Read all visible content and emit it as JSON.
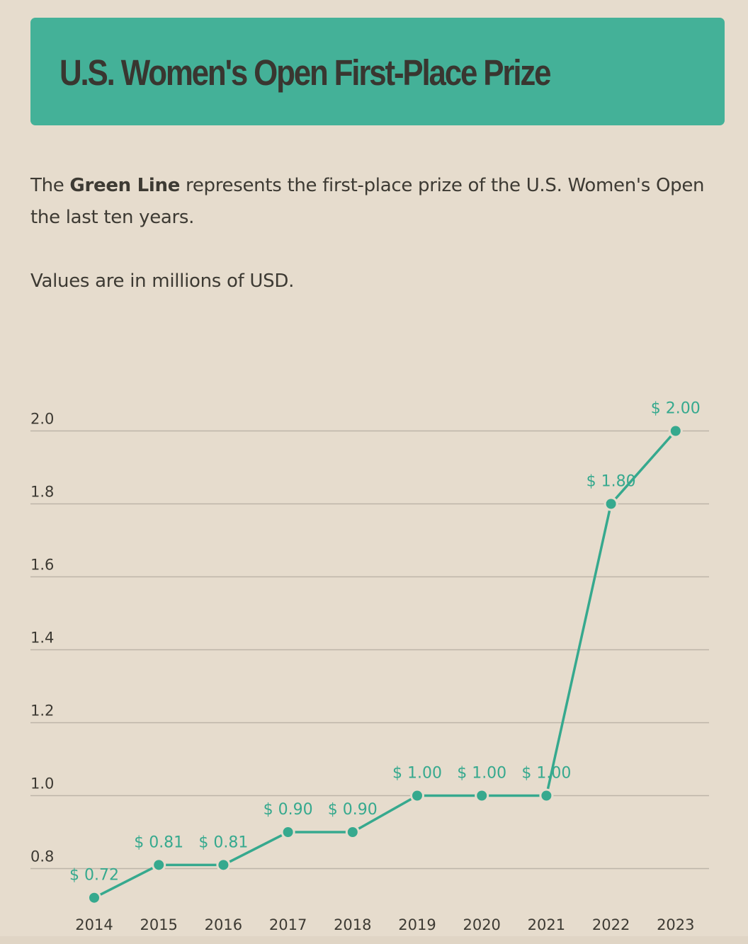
{
  "header": {
    "title": "U.S. Women's Open First-Place Prize"
  },
  "description": {
    "intro": "The ",
    "highlight": "Green Line",
    "rest": " represents the first-place prize of the U.S. Women's Open the last ten years.",
    "units": "Values are in millions of USD."
  },
  "colors": {
    "background": "#e6dccd",
    "accent": "#44b198",
    "line": "#36a98e",
    "grid": "#bdb5a8",
    "text": "#3d3a33"
  },
  "chart_data": {
    "type": "line",
    "x": [
      "2014",
      "2015",
      "2016",
      "2017",
      "2018",
      "2019",
      "2020",
      "2021",
      "2022",
      "2023"
    ],
    "series": [
      {
        "values": [
          0.72,
          0.81,
          0.81,
          0.9,
          0.9,
          1.0,
          1.0,
          1.0,
          1.8,
          2.0
        ],
        "labels": [
          "$ 0.72",
          "$ 0.81",
          "$ 0.81",
          "$ 0.90",
          "$ 0.90",
          "$ 1.00",
          "$ 1.00",
          "$ 1.00",
          "$ 1.80",
          "$ 2.00"
        ]
      }
    ],
    "yticks": [
      {
        "value": 0.8,
        "label": "0.8"
      },
      {
        "value": 1.0,
        "label": "1.0"
      },
      {
        "value": 1.2,
        "label": "1.2"
      },
      {
        "value": 1.4,
        "label": "1.4"
      },
      {
        "value": 1.6,
        "label": "1.6"
      },
      {
        "value": 1.8,
        "label": "1.8"
      },
      {
        "value": 2.0,
        "label": "2.0"
      }
    ],
    "ylim": [
      0.72,
      2.0
    ],
    "grid": true,
    "legend": "none"
  }
}
